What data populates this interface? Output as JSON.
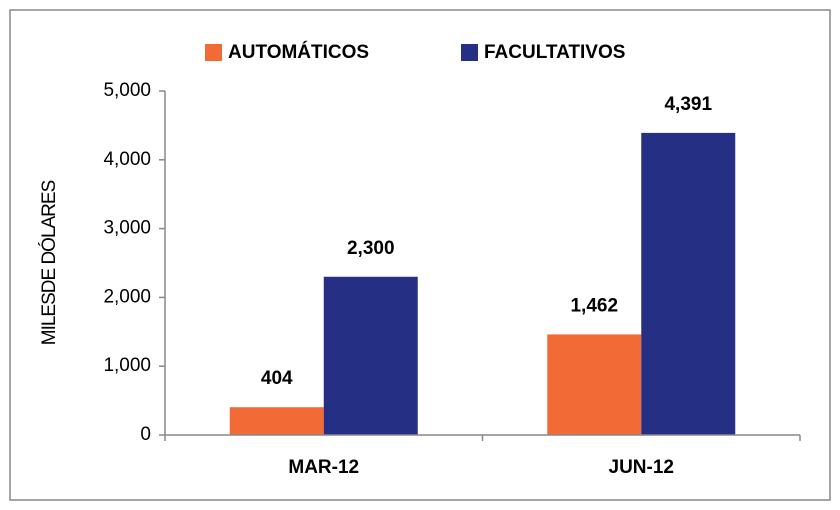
{
  "chart_data": {
    "type": "bar",
    "categories": [
      "MAR-12",
      "JUN-12"
    ],
    "series": [
      {
        "name": "AUTOMÁTICOS",
        "color": "#f26a35",
        "values": [
          404,
          1462
        ],
        "value_labels": [
          "404",
          "1,462"
        ]
      },
      {
        "name": "FACULTATIVOS",
        "color": "#253085",
        "values": [
          2300,
          4391
        ],
        "value_labels": [
          "2,300",
          "4,391"
        ]
      }
    ],
    "y_label": "MILESDE DÓLARES",
    "ylim": [
      0,
      5000
    ],
    "yticks": [
      0,
      {
        "value": 1000,
        "label": "1,000"
      },
      {
        "value": 2000,
        "label": "2,000"
      },
      {
        "value": 3000,
        "label": "3,000"
      },
      {
        "value": 4000,
        "label": "4,000"
      },
      {
        "value": 5000,
        "label": "5,000"
      }
    ],
    "grid": false,
    "legend": "top"
  }
}
